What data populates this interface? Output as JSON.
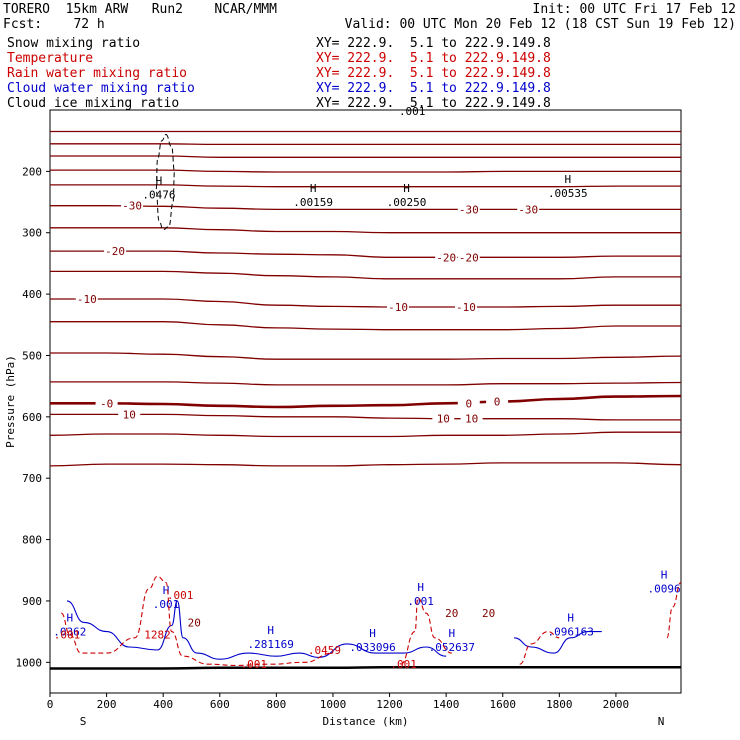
{
  "header": {
    "line1_left": "TORERO  15km ARW   Run2    NCAR/MMM",
    "line1_right": "Init: 00 UTC Fri 17 Feb 12",
    "line2_left": "Fcst:    72 h",
    "line2_right": "Valid: 00 UTC Mon 20 Feb 12 (18 CST Sun 19 Feb 12)"
  },
  "legend": [
    {
      "label": "Snow mixing ratio",
      "xy": "XY= 222.9.  5.1 to 222.9.149.8",
      "color": "#000000"
    },
    {
      "label": "Temperature",
      "xy": "XY= 222.9.  5.1 to 222.9.149.8",
      "color": "#cc0000"
    },
    {
      "label": "Rain water mixing ratio",
      "xy": "XY= 222.9.  5.1 to 222.9.149.8",
      "color": "#cc0000"
    },
    {
      "label": "Cloud water mixing ratio",
      "xy": "XY= 222.9.  5.1 to 222.9.149.8",
      "color": "#0000cc"
    },
    {
      "label": "Cloud ice mixing ratio",
      "xy": "XY= 222.9.  5.1 to 222.9.149.8",
      "color": "#000000"
    }
  ],
  "colors": {
    "temperature": "#800000",
    "rain": "#cc0000",
    "cloud_water": "#0000cc",
    "snow": "#000000",
    "terrain": "#000000"
  },
  "chart_data": {
    "type": "line",
    "xlabel": "Distance (km)",
    "ylabel": "Pressure (hPa)",
    "xlim": [
      0,
      2230
    ],
    "ylim": [
      1050,
      100
    ],
    "x_ticks": [
      0,
      200,
      400,
      600,
      800,
      1000,
      1200,
      1400,
      1600,
      1800,
      2000
    ],
    "y_ticks": [
      200,
      300,
      400,
      500,
      600,
      700,
      800,
      900,
      1000
    ],
    "x_end_labels": {
      "left": "S",
      "right": "N"
    },
    "temperature_isotherms": [
      {
        "temp": -55,
        "pressure": [
          135,
          135,
          135,
          135,
          135,
          135,
          135,
          135,
          135,
          135,
          135,
          135
        ]
      },
      {
        "temp": -50,
        "pressure": [
          155,
          155,
          155,
          156,
          156,
          156,
          156,
          156,
          156,
          156,
          156,
          156
        ]
      },
      {
        "temp": -45,
        "pressure": [
          175,
          175,
          175,
          177,
          177,
          177,
          177,
          177,
          177,
          177,
          177,
          177
        ]
      },
      {
        "temp": -40,
        "pressure": [
          198,
          198,
          198,
          200,
          201,
          201,
          201,
          201,
          200,
          200,
          200,
          200
        ]
      },
      {
        "temp": -35,
        "pressure": [
          222,
          222,
          222,
          224,
          225,
          225,
          225,
          225,
          225,
          225,
          224,
          224
        ]
      },
      {
        "temp": -30,
        "pressure": [
          256,
          256,
          257,
          260,
          262,
          262,
          262,
          262,
          262,
          262,
          262,
          262
        ]
      },
      {
        "temp": -25,
        "pressure": [
          292,
          292,
          292,
          295,
          298,
          298,
          300,
          300,
          300,
          300,
          300,
          300
        ]
      },
      {
        "temp": -20,
        "pressure": [
          330,
          330,
          330,
          333,
          335,
          336,
          340,
          340,
          340,
          340,
          338,
          338
        ]
      },
      {
        "temp": -15,
        "pressure": [
          363,
          363,
          363,
          366,
          370,
          372,
          375,
          375,
          375,
          375,
          372,
          372
        ]
      },
      {
        "temp": -10,
        "pressure": [
          408,
          408,
          408,
          412,
          418,
          420,
          421,
          421,
          421,
          420,
          418,
          418
        ]
      },
      {
        "temp": -5,
        "pressure": [
          445,
          445,
          445,
          450,
          455,
          457,
          458,
          458,
          458,
          456,
          452,
          452
        ]
      },
      {
        "temp": 0,
        "pressure": [
          496,
          496,
          498,
          502,
          506,
          506,
          506,
          506,
          505,
          505,
          503,
          501
        ]
      },
      {
        "temp": 5,
        "pressure": [
          543,
          543,
          543,
          545,
          548,
          548,
          548,
          548,
          546,
          546,
          545,
          544
        ]
      },
      {
        "temp": 10,
        "pressure": [
          596,
          596,
          596,
          598,
          600,
          600,
          602,
          603,
          603,
          603,
          605,
          605
        ]
      },
      {
        "temp": 15,
        "pressure": [
          630,
          628,
          628,
          630,
          632,
          632,
          632,
          630,
          630,
          628,
          625,
          625
        ]
      },
      {
        "temp": 20,
        "pressure": [
          680,
          677,
          677,
          678,
          680,
          680,
          678,
          677,
          675,
          675,
          675,
          678
        ]
      }
    ],
    "isotherm_x": [
      0,
      200,
      400,
      600,
      800,
      1000,
      1200,
      1400,
      1600,
      1800,
      2000,
      2230
    ],
    "isotherm_labels": [
      {
        "x": 290,
        "temp": -30,
        "text": "-30"
      },
      {
        "x": 1480,
        "temp": -30,
        "text": "-30"
      },
      {
        "x": 1690,
        "temp": -30,
        "text": "-30"
      },
      {
        "x": 230,
        "temp": -20,
        "text": "-20"
      },
      {
        "x": 1400,
        "temp": -20,
        "text": "-20"
      },
      {
        "x": 1480,
        "temp": -20,
        "text": "-20"
      },
      {
        "x": 130,
        "temp": -10,
        "text": "-10"
      },
      {
        "x": 1230,
        "temp": -10,
        "text": "-10"
      },
      {
        "x": 1470,
        "temp": -10,
        "text": "-10"
      },
      {
        "x": 200,
        "temp": 0,
        "text": "-0"
      },
      {
        "x": 1480,
        "temp": 0,
        "text": "0"
      },
      {
        "x": 1580,
        "temp": 0,
        "text": "0"
      },
      {
        "x": 280,
        "temp": 10,
        "text": "10"
      },
      {
        "x": 1390,
        "temp": 10,
        "text": "10"
      },
      {
        "x": 1490,
        "temp": 10,
        "text": "10"
      }
    ],
    "zero_isotherm_pressure": [
      578,
      578,
      579,
      582,
      584,
      582,
      581,
      578,
      575,
      571,
      567,
      566
    ],
    "terrain_pressure": [
      1010,
      1010,
      1010,
      1009,
      1009,
      1009,
      1008,
      1008,
      1008,
      1008,
      1008,
      1008
    ],
    "snow_maxima": [
      {
        "x": 385,
        "p": 238,
        "value": ".0476"
      },
      {
        "x": 930,
        "p": 250,
        "value": ".00159"
      },
      {
        "x": 1260,
        "p": 250,
        "value": ".00250"
      },
      {
        "x": 1830,
        "p": 235,
        "value": ".00535"
      }
    ],
    "snow_contour_x": [
      410,
      430,
      440,
      435,
      420,
      400,
      385,
      375,
      380,
      395,
      410
    ],
    "snow_contour_p": [
      140,
      160,
      200,
      250,
      290,
      295,
      280,
      230,
      180,
      150,
      140
    ],
    "upper_marker": {
      "x": 1280,
      "p": 108,
      "value": ".001"
    },
    "cloud_water_maxima": [
      {
        "x": 410,
        "p": 905,
        "value": ".001"
      },
      {
        "x": 70,
        "p": 950,
        "value": ".0362"
      },
      {
        "x": 780,
        "p": 970,
        "value": ".281169"
      },
      {
        "x": 1310,
        "p": 900,
        "value": ".001"
      },
      {
        "x": 1140,
        "p": 975,
        "value": ".033096"
      },
      {
        "x": 1420,
        "p": 975,
        "value": ".052637"
      },
      {
        "x": 1840,
        "p": 950,
        "value": ".096163"
      },
      {
        "x": 2170,
        "p": 880,
        "value": ".0096"
      }
    ],
    "rain_maxima": [
      {
        "x": 460,
        "p": 890,
        "value": ".001"
      },
      {
        "x": 380,
        "p": 955,
        "value": "1282"
      },
      {
        "x": 970,
        "p": 980,
        "value": ".0459"
      },
      {
        "x": 720,
        "p": 1003,
        "value": ".001"
      },
      {
        "x": 1250,
        "p": 1003,
        "value": ".001"
      },
      {
        "x": 60,
        "p": 955,
        "value": ".001"
      }
    ],
    "lower_labels": [
      {
        "x": 510,
        "p": 935,
        "value": "20"
      },
      {
        "x": 1420,
        "p": 920,
        "value": "20"
      },
      {
        "x": 1550,
        "p": 920,
        "value": "20"
      }
    ]
  }
}
